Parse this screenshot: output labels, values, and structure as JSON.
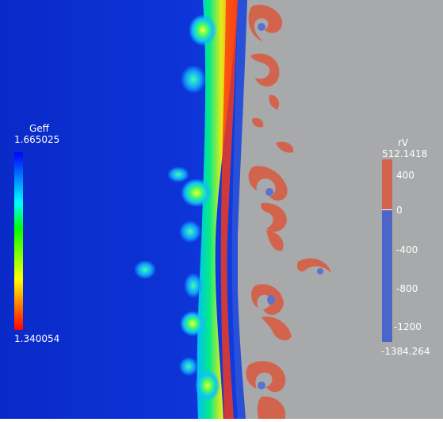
{
  "colors": {
    "background_left": "#0d2dcf",
    "background_right": "#a8a9aa",
    "scalar_low": "#ff0000",
    "scalar_high": "#0000ff",
    "rv_positive": "#d2644e",
    "rv_negative": "#4b66c8"
  },
  "legend_left": {
    "title": "Geff",
    "max_label": "1.665025",
    "min_label": "1.340054",
    "colormap": [
      "#ff0000",
      "#ff8000",
      "#ffff00",
      "#80ff00",
      "#00ff00",
      "#00ffff",
      "#0080ff",
      "#0000ff"
    ]
  },
  "legend_right": {
    "title": "rV",
    "max_label": "512.1418",
    "min_label": "-1384.264",
    "ticks": [
      "400",
      "0",
      "-400",
      "-800",
      "-1200"
    ],
    "colors": {
      "positive": "#d2644e",
      "negative": "#4b66c8"
    }
  }
}
